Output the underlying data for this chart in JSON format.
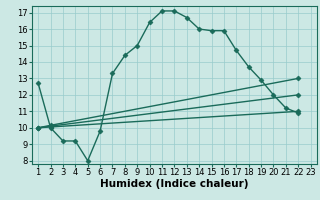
{
  "xlabel": "Humidex (Indice chaleur)",
  "bg_color": "#cce8e4",
  "line_color": "#1a6b5a",
  "grid_color": "#99cccc",
  "xlim": [
    0.5,
    23.5
  ],
  "ylim": [
    7.8,
    17.4
  ],
  "xticks": [
    1,
    2,
    3,
    4,
    5,
    6,
    7,
    8,
    9,
    10,
    11,
    12,
    13,
    14,
    15,
    16,
    17,
    18,
    19,
    20,
    21,
    22,
    23
  ],
  "yticks": [
    8,
    9,
    10,
    11,
    12,
    13,
    14,
    15,
    16,
    17
  ],
  "lines": [
    {
      "x": [
        1,
        2,
        3,
        4,
        5,
        6,
        7,
        8,
        9,
        10,
        11,
        12,
        13,
        14,
        15,
        16,
        17,
        18,
        19,
        20,
        21,
        22
      ],
      "y": [
        12.7,
        10.0,
        9.2,
        9.2,
        8.0,
        9.8,
        13.3,
        14.4,
        15.0,
        16.4,
        17.1,
        17.1,
        16.7,
        16.0,
        15.9,
        15.9,
        14.7,
        13.7,
        12.9,
        12.0,
        11.2,
        10.9
      ]
    },
    {
      "x": [
        1,
        2,
        22
      ],
      "y": [
        10.0,
        10.05,
        11.0
      ]
    },
    {
      "x": [
        1,
        2,
        22
      ],
      "y": [
        10.0,
        10.1,
        12.0
      ]
    },
    {
      "x": [
        1,
        2,
        22
      ],
      "y": [
        10.0,
        10.15,
        13.0
      ]
    }
  ],
  "marker": "D",
  "markersize": 2.5,
  "linewidth": 1.0,
  "xlabel_fontsize": 7.5,
  "tick_fontsize": 6.0
}
